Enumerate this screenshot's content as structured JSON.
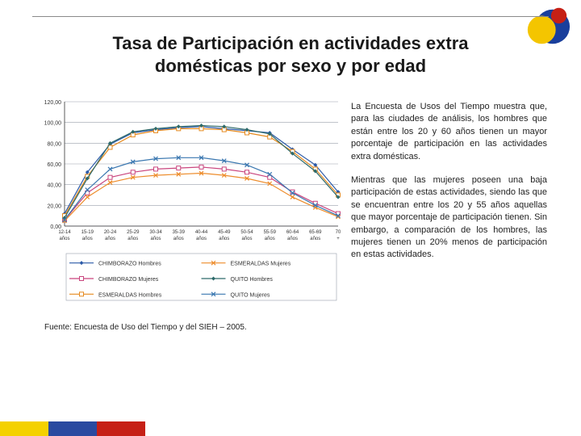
{
  "title_line1": "Tasa de Participación en actividades extra",
  "title_line2": "domésticas por sexo y por edad",
  "paragraph1": "La Encuesta de Usos del Tiempo muestra que, para las ciudades de análisis, los hombres que están entre los 20 y 60 años tienen un mayor porcentaje de participación en las actividades extra domésticas.",
  "paragraph2": "Mientras que las mujeres poseen una baja participación de estas actividades, siendo las que se encuentran entre los 20 y 55 años aquellas que mayor porcentaje de participación tienen. Sin embargo, a comparación de los hombres, las mujeres tienen un 20% menos de participación en estas actividades.",
  "source": "Fuente: Encuesta de Uso del Tiempo y del SIEH – 2005.",
  "chart": {
    "type": "line",
    "background_color": "#ffffff",
    "grid_color": "#9aa0ac",
    "axes_color": "#333333",
    "xlabels": [
      "12-14 años",
      "15-19 años",
      "20-24 años",
      "25-29 años",
      "30-34 años",
      "35-39 años",
      "40-44 años",
      "45-49 años",
      "50-54 años",
      "55-59 años",
      "60-64 años",
      "65-69 años",
      "70 +"
    ],
    "ylim": [
      0,
      120
    ],
    "ytick_step": 20,
    "yticks": [
      "0,00",
      "20,00",
      "40,00",
      "60,00",
      "80,00",
      "100,00",
      "120,00"
    ],
    "series": [
      {
        "name": "CHIMBORAZO Hombres",
        "color": "#2c5aa8",
        "marker": "diamond",
        "y": [
          12,
          52,
          79,
          90,
          93,
          95,
          96,
          94,
          92,
          90,
          74,
          59,
          33
        ]
      },
      {
        "name": "CHIMBORAZO Mujeres",
        "color": "#c9457e",
        "marker": "square",
        "y": [
          6,
          32,
          47,
          52,
          55,
          56,
          57,
          55,
          52,
          47,
          33,
          22,
          12
        ]
      },
      {
        "name": "ESMERALDAS Hombres",
        "color": "#e68a1f",
        "marker": "square",
        "y": [
          10,
          48,
          76,
          88,
          92,
          94,
          94,
          93,
          90,
          86,
          72,
          55,
          30
        ]
      },
      {
        "name": "ESMERALDAS Mujeres",
        "color": "#ed8c2b",
        "marker": "x",
        "y": [
          5,
          28,
          42,
          47,
          49,
          50,
          51,
          49,
          46,
          41,
          28,
          18,
          9
        ]
      },
      {
        "name": "QUITO Hombres",
        "color": "#2d6a6a",
        "marker": "diamond",
        "y": [
          8,
          46,
          80,
          91,
          94,
          96,
          97,
          96,
          93,
          89,
          70,
          53,
          28
        ]
      },
      {
        "name": "QUITO Mujeres",
        "color": "#3a77b0",
        "marker": "x",
        "y": [
          6,
          35,
          55,
          62,
          65,
          66,
          66,
          63,
          59,
          50,
          32,
          20,
          10
        ]
      }
    ],
    "legend": [
      {
        "label": "CHIMBORAZO Hombres",
        "color": "#2c5aa8",
        "marker": "diamond"
      },
      {
        "label": "ESMERALDAS Mujeres",
        "color": "#ed8c2b",
        "marker": "x"
      },
      {
        "label": "CHIMBORAZO Mujeres",
        "color": "#c9457e",
        "marker": "square"
      },
      {
        "label": "QUITO Hombres",
        "color": "#2d6a6a",
        "marker": "diamond"
      },
      {
        "label": "ESMERALDAS Hombres",
        "color": "#e68a1f",
        "marker": "square"
      },
      {
        "label": "QUITO Mujeres",
        "color": "#3a77b0",
        "marker": "x"
      }
    ],
    "legend_fontsize": 7,
    "tick_fontsize": 6,
    "line_width": 1.2,
    "marker_size": 5
  },
  "footer_colors": [
    "#f4d100",
    "#2a4aa0",
    "#c62016"
  ],
  "logo_colors": {
    "yellow": "#f4c500",
    "blue": "#1a3f9c",
    "red": "#c62016"
  }
}
